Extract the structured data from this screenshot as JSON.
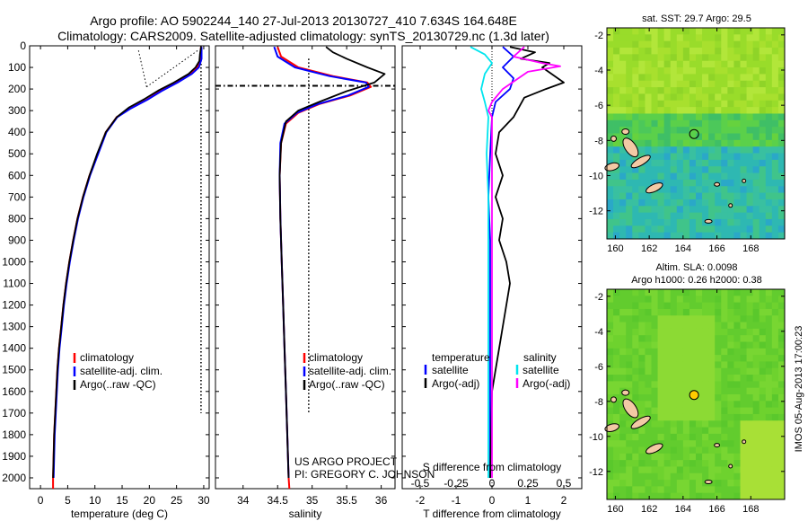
{
  "header": {
    "line1": "Argo profile: AO 5902244_140 27-Jul-2013 20130727_410 7.634S 164.648E",
    "line2": "Climatology: CARS2009. Satellite-adjusted climatology: synTS_20130729.nc (1.3d later)"
  },
  "colors": {
    "climatology": "#ff0000",
    "satellite": "#0000ff",
    "argo": "#000000",
    "sal_satellite": "#00e5ee",
    "sal_argo": "#ff00ff"
  },
  "chart_data": [
    {
      "type": "line",
      "panel": "temperature",
      "xlabel": "temperature (deg C)",
      "ylabel": "",
      "xlim": [
        -2,
        31
      ],
      "ylim": [
        2050,
        0
      ],
      "xticks": [
        "0",
        "5",
        "10",
        "15",
        "20",
        "25",
        "30"
      ],
      "yticks": [
        "0",
        "100",
        "200",
        "300",
        "400",
        "500",
        "600",
        "700",
        "800",
        "900",
        "1000",
        "1100",
        "1200",
        "1300",
        "1400",
        "1500",
        "1600",
        "1700",
        "1800",
        "1900",
        "2000"
      ],
      "legend": [
        "climatology",
        "satellite-adj. clim.",
        "Argo(..raw -QC)"
      ],
      "series": [
        {
          "name": "climatology",
          "points": [
            [
              29.5,
              5
            ],
            [
              29.4,
              60
            ],
            [
              28.8,
              100
            ],
            [
              27.5,
              130
            ],
            [
              25,
              170
            ],
            [
              22,
              210
            ],
            [
              19.5,
              250
            ],
            [
              16.5,
              290
            ],
            [
              14,
              330
            ],
            [
              12,
              400
            ],
            [
              10.5,
              500
            ],
            [
              9,
              600
            ],
            [
              7.8,
              700
            ],
            [
              6.8,
              800
            ],
            [
              6,
              900
            ],
            [
              5.3,
              1000
            ],
            [
              4.7,
              1100
            ],
            [
              4.2,
              1200
            ],
            [
              3.8,
              1300
            ],
            [
              3.4,
              1400
            ],
            [
              3.1,
              1500
            ],
            [
              2.9,
              1600
            ],
            [
              2.7,
              1700
            ],
            [
              2.5,
              1800
            ],
            [
              2.4,
              1900
            ],
            [
              2.3,
              2000
            ],
            [
              2.3,
              2050
            ]
          ]
        },
        {
          "name": "satellite-adj. clim.",
          "points": [
            [
              29.6,
              5
            ],
            [
              29.6,
              60
            ],
            [
              29.1,
              100
            ],
            [
              27.8,
              130
            ],
            [
              25.2,
              170
            ],
            [
              22.2,
              210
            ],
            [
              19.6,
              250
            ],
            [
              16.6,
              290
            ],
            [
              14.1,
              330
            ],
            [
              12.1,
              400
            ],
            [
              10.6,
              500
            ],
            [
              9.1,
              600
            ],
            [
              7.9,
              700
            ],
            [
              6.9,
              800
            ],
            [
              6.1,
              900
            ],
            [
              5.4,
              1000
            ],
            [
              4.8,
              1100
            ],
            [
              4.3,
              1200
            ],
            [
              3.9,
              1300
            ],
            [
              3.5,
              1400
            ],
            [
              3.2,
              1500
            ],
            [
              3,
              1600
            ],
            [
              2.8,
              1700
            ],
            [
              2.6,
              1800
            ],
            [
              2.5,
              1900
            ],
            [
              2.4,
              2000
            ]
          ]
        },
        {
          "name": "Argo(..raw -QC)",
          "points": [
            [
              29.5,
              5
            ],
            [
              29.3,
              40
            ],
            [
              29.2,
              70
            ],
            [
              28.5,
              100
            ],
            [
              27.2,
              130
            ],
            [
              24.5,
              170
            ],
            [
              21.8,
              205
            ],
            [
              19.2,
              245
            ],
            [
              16.3,
              285
            ],
            [
              14,
              330
            ],
            [
              12,
              400
            ],
            [
              10.4,
              500
            ],
            [
              9,
              600
            ],
            [
              7.8,
              700
            ],
            [
              6.8,
              800
            ],
            [
              6,
              900
            ],
            [
              5.3,
              1000
            ],
            [
              4.7,
              1100
            ],
            [
              4.2,
              1200
            ],
            [
              3.8,
              1300
            ],
            [
              3.4,
              1400
            ],
            [
              3.1,
              1500
            ],
            [
              2.9,
              1600
            ],
            [
              2.7,
              1700
            ],
            [
              2.5,
              1800
            ],
            [
              2.4,
              1900
            ],
            [
              2.3,
              2000
            ]
          ]
        }
      ]
    },
    {
      "type": "line",
      "panel": "salinity",
      "xlabel": "salinity",
      "ylabel": "",
      "xlim": [
        33.6,
        36.2
      ],
      "ylim": [
        2050,
        0
      ],
      "xticks": [
        "34",
        "34.5",
        "35",
        "35.5",
        "36"
      ],
      "legend": [
        "climatology",
        "satellite-adj. clim.",
        "Argo(..raw -QC)"
      ],
      "annotation": [
        "US ARGO PROJECT",
        "PI: GREGORY C. JOHNSON"
      ],
      "series": [
        {
          "name": "climatology",
          "points": [
            [
              34.5,
              5
            ],
            [
              34.55,
              50
            ],
            [
              34.8,
              100
            ],
            [
              35.3,
              140
            ],
            [
              35.8,
              170
            ],
            [
              35.85,
              190
            ],
            [
              35.55,
              230
            ],
            [
              35.1,
              270
            ],
            [
              34.8,
              310
            ],
            [
              34.62,
              360
            ],
            [
              34.55,
              450
            ],
            [
              34.53,
              600
            ],
            [
              34.54,
              800
            ],
            [
              34.56,
              1000
            ],
            [
              34.58,
              1200
            ],
            [
              34.6,
              1400
            ],
            [
              34.62,
              1600
            ],
            [
              34.64,
              1800
            ],
            [
              34.66,
              2000
            ],
            [
              34.67,
              2050
            ]
          ]
        },
        {
          "name": "satellite-adj. clim.",
          "points": [
            [
              34.45,
              5
            ],
            [
              34.5,
              50
            ],
            [
              34.75,
              100
            ],
            [
              35.25,
              140
            ],
            [
              35.78,
              170
            ],
            [
              35.82,
              190
            ],
            [
              35.52,
              230
            ],
            [
              35.08,
              270
            ],
            [
              34.78,
              310
            ],
            [
              34.6,
              360
            ],
            [
              34.54,
              450
            ],
            [
              34.53,
              600
            ],
            [
              34.54,
              800
            ],
            [
              34.56,
              1000
            ],
            [
              34.58,
              1200
            ],
            [
              34.6,
              1400
            ],
            [
              34.62,
              1600
            ],
            [
              34.64,
              1800
            ],
            [
              34.66,
              2000
            ]
          ]
        },
        {
          "name": "Argo(..raw -QC)",
          "points": [
            [
              35.2,
              5
            ],
            [
              35.3,
              30
            ],
            [
              35.5,
              60
            ],
            [
              35.8,
              100
            ],
            [
              36.05,
              130
            ],
            [
              35.9,
              170
            ],
            [
              35.5,
              210
            ],
            [
              35.1,
              260
            ],
            [
              34.8,
              300
            ],
            [
              34.62,
              350
            ],
            [
              34.55,
              450
            ],
            [
              34.53,
              600
            ],
            [
              34.54,
              800
            ],
            [
              34.56,
              1000
            ],
            [
              34.58,
              1200
            ],
            [
              34.6,
              1400
            ],
            [
              34.62,
              1600
            ],
            [
              34.64,
              1800
            ],
            [
              34.66,
              2000
            ]
          ]
        }
      ]
    },
    {
      "type": "line",
      "panel": "differences",
      "xlabel": "T difference from climatology",
      "xlabel2": "S difference from climatology",
      "xlim": [
        -2.5,
        2.5
      ],
      "ylim": [
        2050,
        0
      ],
      "xticks": [
        "-2",
        "-1",
        "0",
        "1",
        "2"
      ],
      "xticks2": [
        "-0.5",
        "-0.25",
        "0",
        "0.25",
        "0.5"
      ],
      "legend_temperature_title": "temperature",
      "legend_salinity_title": "salinity",
      "legend": [
        "satellite",
        "Argo(-adj)",
        "satellite",
        "Argo(-adj)"
      ],
      "series": [
        {
          "name": "temperature satellite",
          "points": [
            [
              0.3,
              5
            ],
            [
              0.6,
              50
            ],
            [
              0.3,
              100
            ],
            [
              0.6,
              150
            ],
            [
              0.5,
              200
            ],
            [
              0.1,
              260
            ],
            [
              0,
              330
            ],
            [
              -0.05,
              500
            ],
            [
              -0.1,
              700
            ],
            [
              -0.05,
              900
            ],
            [
              -0.05,
              1200
            ],
            [
              -0.05,
              1500
            ],
            [
              -0.05,
              2000
            ]
          ]
        },
        {
          "name": "temperature Argo(-adj)",
          "points": [
            [
              0.5,
              5
            ],
            [
              1.2,
              30
            ],
            [
              0.8,
              60
            ],
            [
              1.6,
              80
            ],
            [
              1.4,
              100
            ],
            [
              2,
              170
            ],
            [
              1.5,
              200
            ],
            [
              0.9,
              240
            ],
            [
              0.6,
              330
            ],
            [
              0.2,
              400
            ],
            [
              0.1,
              500
            ],
            [
              0.3,
              600
            ],
            [
              0.1,
              700
            ],
            [
              0.3,
              800
            ],
            [
              0.2,
              900
            ],
            [
              0.4,
              1000
            ],
            [
              0.5,
              1100
            ],
            [
              0.4,
              1200
            ],
            [
              0.3,
              1300
            ],
            [
              0.2,
              1400
            ],
            [
              0.1,
              1500
            ],
            [
              0,
              1600
            ],
            [
              -0.05,
              2000
            ]
          ]
        },
        {
          "name": "salinity satellite",
          "points": [
            [
              -0.6,
              5
            ],
            [
              -0.2,
              40
            ],
            [
              0,
              80
            ],
            [
              -0.2,
              130
            ],
            [
              -0.3,
              200
            ],
            [
              -0.2,
              260
            ],
            [
              -0.1,
              330
            ],
            [
              -0.15,
              500
            ],
            [
              -0.1,
              700
            ],
            [
              -0.1,
              1000
            ],
            [
              -0.1,
              1500
            ],
            [
              -0.1,
              2000
            ]
          ]
        },
        {
          "name": "salinity Argo(-adj)",
          "points": [
            [
              0.9,
              5
            ],
            [
              0.6,
              50
            ],
            [
              1.4,
              80
            ],
            [
              1.9,
              95
            ],
            [
              1,
              120
            ],
            [
              0.3,
              200
            ],
            [
              0,
              260
            ],
            [
              -0.1,
              300
            ],
            [
              0,
              330
            ],
            [
              0,
              2000
            ]
          ]
        }
      ]
    }
  ],
  "maps": [
    {
      "title": "sat. SST: 29.7 Argo: 29.5",
      "xticks": [
        "160",
        "162",
        "164",
        "166",
        "168"
      ],
      "yticks": [
        "-2",
        "-4",
        "-6",
        "-8",
        "-10",
        "-12"
      ],
      "xlim": [
        159.5,
        170
      ],
      "ylim": [
        -13.6,
        -1.6
      ],
      "marker": {
        "lon": 164.648,
        "lat": -7.634
      }
    },
    {
      "title1": "Altim. SLA: 0.0098",
      "title2": "Argo h1000: 0.26 h2000: 0.38",
      "xticks": [
        "160",
        "162",
        "164",
        "166",
        "168"
      ],
      "yticks": [
        "-2",
        "-4",
        "-6",
        "-8",
        "-10",
        "-12"
      ],
      "xlim": [
        159.5,
        170
      ],
      "ylim": [
        -13.6,
        -1.6
      ],
      "marker": {
        "lon": 164.648,
        "lat": -7.634
      }
    }
  ],
  "side_label": "IMOS 05-Aug-2013 17:00:23"
}
